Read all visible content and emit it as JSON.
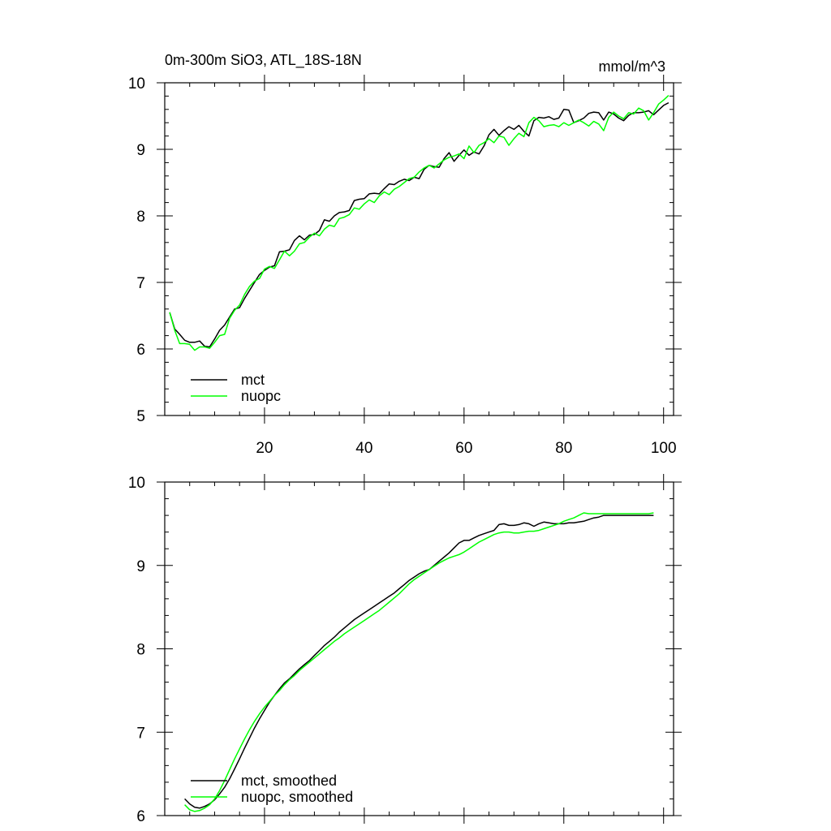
{
  "chart_data": [
    {
      "type": "line",
      "title": "0m-300m SiO3, ATL_18S-18N",
      "units": "mmol/m^3",
      "xlim": [
        0,
        102
      ],
      "ylim": [
        5,
        10
      ],
      "xticks": [
        20,
        40,
        60,
        80,
        100
      ],
      "yticks": [
        5,
        6,
        7,
        8,
        9,
        10
      ],
      "legend_position": "bottom-left",
      "series": [
        {
          "name": "mct",
          "color": "#000000",
          "x": [
            1,
            2,
            3,
            4,
            5,
            6,
            7,
            8,
            9,
            10,
            11,
            12,
            13,
            14,
            15,
            16,
            17,
            18,
            19,
            20,
            21,
            22,
            23,
            24,
            25,
            26,
            27,
            28,
            29,
            30,
            31,
            32,
            33,
            34,
            35,
            36,
            37,
            38,
            39,
            40,
            41,
            42,
            43,
            44,
            45,
            46,
            47,
            48,
            49,
            50,
            51,
            52,
            53,
            54,
            55,
            56,
            57,
            58,
            59,
            60,
            61,
            62,
            63,
            64,
            65,
            66,
            67,
            68,
            69,
            70,
            71,
            72,
            73,
            74,
            75,
            76,
            77,
            78,
            79,
            80,
            81,
            82,
            83,
            84,
            85,
            86,
            87,
            88,
            89,
            90,
            91,
            92,
            93,
            94,
            95,
            96,
            97,
            98,
            99,
            100,
            101
          ],
          "values": [
            6.55,
            6.3,
            6.22,
            6.13,
            6.1,
            6.1,
            6.12,
            6.04,
            6.03,
            6.15,
            6.28,
            6.36,
            6.48,
            6.6,
            6.62,
            6.76,
            6.88,
            7.0,
            7.12,
            7.18,
            7.23,
            7.25,
            7.46,
            7.47,
            7.49,
            7.63,
            7.7,
            7.64,
            7.71,
            7.72,
            7.78,
            7.94,
            7.92,
            8.0,
            8.05,
            8.06,
            8.08,
            8.23,
            8.25,
            8.26,
            8.33,
            8.34,
            8.33,
            8.41,
            8.48,
            8.47,
            8.52,
            8.55,
            8.53,
            8.58,
            8.56,
            8.7,
            8.76,
            8.74,
            8.73,
            8.86,
            8.95,
            8.82,
            8.91,
            8.99,
            8.91,
            8.96,
            8.93,
            9.05,
            9.22,
            9.3,
            9.21,
            9.28,
            9.34,
            9.3,
            9.36,
            9.27,
            9.2,
            9.43,
            9.48,
            9.47,
            9.49,
            9.45,
            9.47,
            9.6,
            9.59,
            9.4,
            9.43,
            9.47,
            9.54,
            9.56,
            9.55,
            9.44,
            9.56,
            9.53,
            9.47,
            9.43,
            9.51,
            9.55,
            9.55,
            9.56,
            9.58,
            9.52,
            9.59,
            9.66,
            9.7
          ]
        },
        {
          "name": "nuopc",
          "color": "#00ff00",
          "x": [
            1,
            2,
            3,
            4,
            5,
            6,
            7,
            8,
            9,
            10,
            11,
            12,
            13,
            14,
            15,
            16,
            17,
            18,
            19,
            20,
            21,
            22,
            23,
            24,
            25,
            26,
            27,
            28,
            29,
            30,
            31,
            32,
            33,
            34,
            35,
            36,
            37,
            38,
            39,
            40,
            41,
            42,
            43,
            44,
            45,
            46,
            47,
            48,
            49,
            50,
            51,
            52,
            53,
            54,
            55,
            56,
            57,
            58,
            59,
            60,
            61,
            62,
            63,
            64,
            65,
            66,
            67,
            68,
            69,
            70,
            71,
            72,
            73,
            74,
            75,
            76,
            77,
            78,
            79,
            80,
            81,
            82,
            83,
            84,
            85,
            86,
            87,
            88,
            89,
            90,
            91,
            92,
            93,
            94,
            95,
            96,
            97,
            98,
            99,
            100,
            101
          ],
          "values": [
            6.55,
            6.28,
            6.08,
            6.08,
            6.07,
            5.98,
            6.03,
            6.03,
            6.01,
            6.1,
            6.2,
            6.22,
            6.46,
            6.58,
            6.66,
            6.82,
            6.94,
            7.02,
            7.06,
            7.2,
            7.24,
            7.21,
            7.34,
            7.47,
            7.4,
            7.47,
            7.58,
            7.6,
            7.68,
            7.74,
            7.7,
            7.8,
            7.86,
            7.84,
            7.96,
            7.98,
            8.02,
            8.12,
            8.1,
            8.18,
            8.24,
            8.2,
            8.3,
            8.36,
            8.32,
            8.4,
            8.44,
            8.5,
            8.56,
            8.58,
            8.66,
            8.72,
            8.76,
            8.72,
            8.78,
            8.84,
            8.88,
            8.9,
            8.93,
            8.86,
            9.05,
            8.95,
            9.06,
            9.1,
            9.16,
            9.1,
            9.2,
            9.18,
            9.06,
            9.16,
            9.24,
            9.19,
            9.4,
            9.48,
            9.43,
            9.34,
            9.36,
            9.37,
            9.34,
            9.4,
            9.36,
            9.4,
            9.44,
            9.4,
            9.35,
            9.42,
            9.38,
            9.28,
            9.48,
            9.56,
            9.5,
            9.46,
            9.55,
            9.53,
            9.62,
            9.58,
            9.44,
            9.55,
            9.68,
            9.74,
            9.81
          ]
        }
      ]
    },
    {
      "type": "line",
      "xlim": [
        0,
        102
      ],
      "ylim": [
        6,
        10
      ],
      "xticks": [
        20,
        40,
        60,
        80,
        100
      ],
      "yticks": [
        6,
        7,
        8,
        9,
        10
      ],
      "legend_position": "bottom-left",
      "series": [
        {
          "name": "mct, smoothed",
          "color": "#000000",
          "x": [
            4,
            5,
            6,
            7,
            8,
            9,
            10,
            11,
            12,
            13,
            14,
            15,
            16,
            17,
            18,
            19,
            20,
            21,
            22,
            23,
            24,
            25,
            26,
            27,
            28,
            29,
            30,
            31,
            32,
            33,
            34,
            35,
            36,
            37,
            38,
            39,
            40,
            41,
            42,
            43,
            44,
            45,
            46,
            47,
            48,
            49,
            50,
            51,
            52,
            53,
            54,
            55,
            56,
            57,
            58,
            59,
            60,
            61,
            62,
            63,
            64,
            65,
            66,
            67,
            68,
            69,
            70,
            71,
            72,
            73,
            74,
            75,
            76,
            77,
            78,
            79,
            80,
            81,
            82,
            83,
            84,
            85,
            86,
            87,
            88,
            89,
            90,
            91,
            92,
            93,
            94,
            95,
            96,
            97,
            98
          ],
          "values": [
            6.2,
            6.14,
            6.1,
            6.09,
            6.11,
            6.14,
            6.19,
            6.26,
            6.34,
            6.44,
            6.56,
            6.68,
            6.81,
            6.93,
            7.05,
            7.16,
            7.26,
            7.36,
            7.44,
            7.52,
            7.59,
            7.64,
            7.7,
            7.76,
            7.81,
            7.86,
            7.92,
            7.98,
            8.04,
            8.09,
            8.14,
            8.2,
            8.25,
            8.3,
            8.35,
            8.39,
            8.43,
            8.47,
            8.51,
            8.55,
            8.59,
            8.63,
            8.67,
            8.72,
            8.77,
            8.82,
            8.86,
            8.9,
            8.93,
            8.95,
            9.0,
            9.05,
            9.1,
            9.15,
            9.21,
            9.27,
            9.3,
            9.3,
            9.33,
            9.36,
            9.38,
            9.4,
            9.42,
            9.49,
            9.5,
            9.48,
            9.48,
            9.49,
            9.51,
            9.5,
            9.47,
            9.5,
            9.52,
            9.51,
            9.5,
            9.5,
            9.5,
            9.51,
            9.51,
            9.52,
            9.53,
            9.55,
            9.57,
            9.58,
            9.6,
            9.6,
            9.6,
            9.6,
            9.6,
            9.6,
            9.6,
            9.6,
            9.6,
            9.6,
            9.6
          ]
        },
        {
          "name": "nuopc, smoothed",
          "color": "#00ff00",
          "x": [
            4,
            5,
            6,
            7,
            8,
            9,
            10,
            11,
            12,
            13,
            14,
            15,
            16,
            17,
            18,
            19,
            20,
            21,
            22,
            23,
            24,
            25,
            26,
            27,
            28,
            29,
            30,
            31,
            32,
            33,
            34,
            35,
            36,
            37,
            38,
            39,
            40,
            41,
            42,
            43,
            44,
            45,
            46,
            47,
            48,
            49,
            50,
            51,
            52,
            53,
            54,
            55,
            56,
            57,
            58,
            59,
            60,
            61,
            62,
            63,
            64,
            65,
            66,
            67,
            68,
            69,
            70,
            71,
            72,
            73,
            74,
            75,
            76,
            77,
            78,
            79,
            80,
            81,
            82,
            83,
            84,
            85,
            86,
            87,
            88,
            89,
            90,
            91,
            92,
            93,
            94,
            95,
            96,
            97,
            98
          ],
          "values": [
            6.13,
            6.07,
            6.05,
            6.06,
            6.09,
            6.13,
            6.2,
            6.3,
            6.42,
            6.55,
            6.68,
            6.8,
            6.92,
            7.03,
            7.13,
            7.22,
            7.3,
            7.37,
            7.44,
            7.5,
            7.57,
            7.63,
            7.68,
            7.74,
            7.79,
            7.84,
            7.89,
            7.94,
            7.99,
            8.04,
            8.09,
            8.13,
            8.18,
            8.22,
            8.26,
            8.3,
            8.34,
            8.38,
            8.42,
            8.46,
            8.51,
            8.56,
            8.61,
            8.66,
            8.72,
            8.78,
            8.83,
            8.87,
            8.91,
            8.95,
            8.99,
            9.03,
            9.06,
            9.09,
            9.11,
            9.13,
            9.16,
            9.2,
            9.24,
            9.28,
            9.31,
            9.34,
            9.37,
            9.39,
            9.4,
            9.4,
            9.39,
            9.39,
            9.4,
            9.41,
            9.41,
            9.42,
            9.44,
            9.46,
            9.48,
            9.5,
            9.53,
            9.55,
            9.57,
            9.6,
            9.63,
            9.62,
            9.62,
            9.62,
            9.62,
            9.62,
            9.62,
            9.62,
            9.62,
            9.62,
            9.62,
            9.62,
            9.62,
            9.62,
            9.63
          ]
        }
      ]
    }
  ]
}
